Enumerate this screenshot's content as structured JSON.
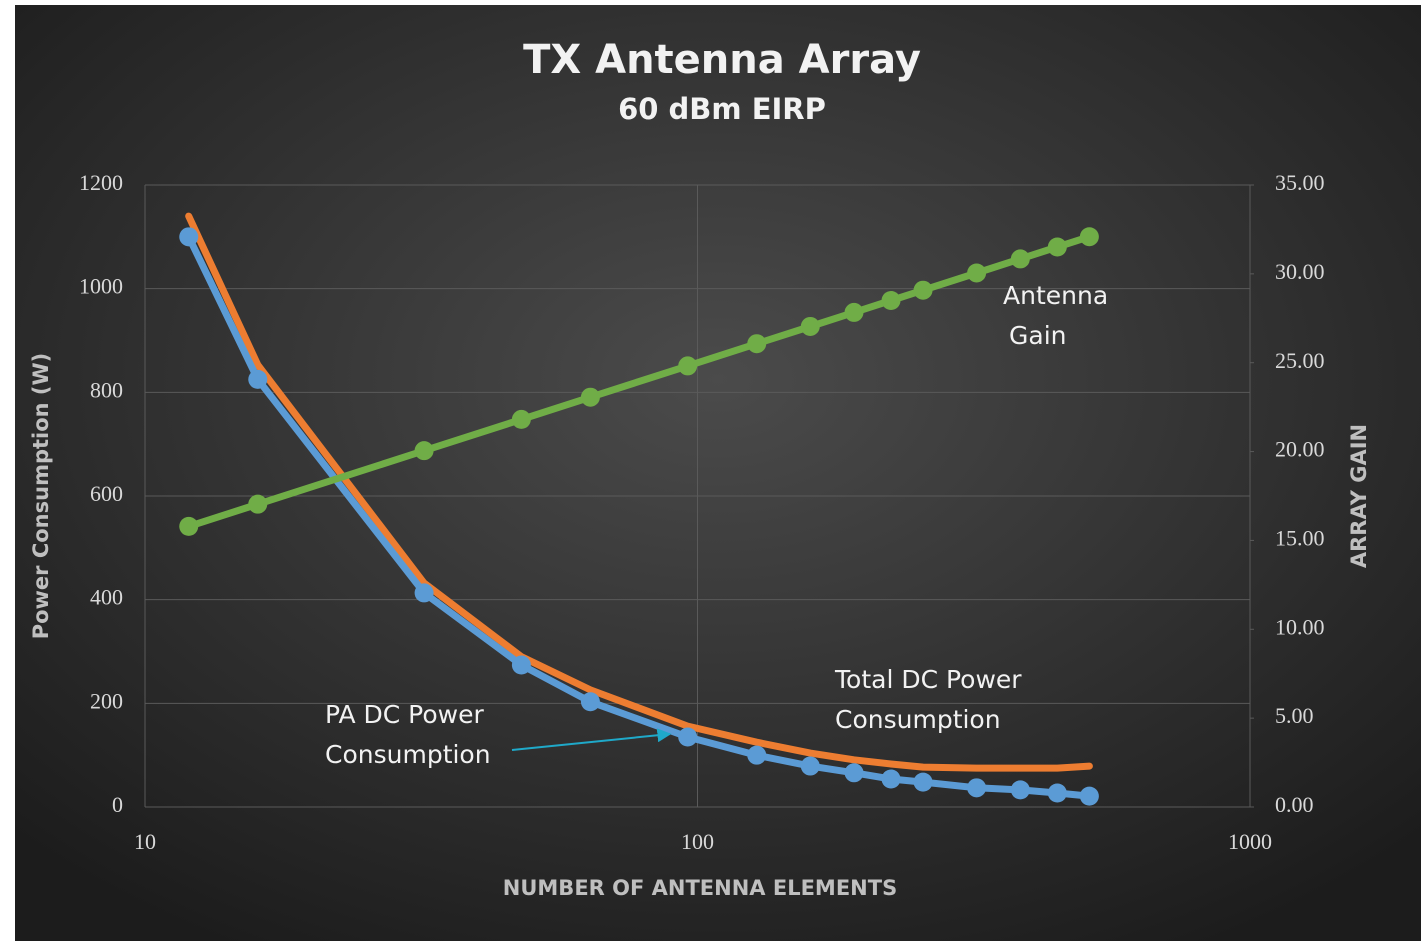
{
  "chart_data": {
    "type": "line",
    "title": "TX Antenna Array",
    "subtitle": "60 dBm EIRP",
    "x_label": "NUMBER OF ANTENNA ELEMENTS",
    "y_label": "Power Consumption (W)",
    "y2_label": "ARRAY GAIN",
    "x": [
      12,
      16,
      32,
      48,
      64,
      96,
      128,
      160,
      192,
      224,
      256,
      320,
      384,
      448,
      512
    ],
    "x_log": true,
    "xlim": [
      10,
      1000
    ],
    "xticks": [
      10,
      100,
      1000
    ],
    "ylim": [
      0,
      1200
    ],
    "yticks": [
      0,
      200,
      400,
      600,
      800,
      1000,
      1200
    ],
    "y2lim": [
      0,
      35
    ],
    "y2ticks": [
      {
        "value": 0,
        "label": "0.00"
      },
      {
        "value": 5,
        "label": "5.00"
      },
      {
        "value": 10,
        "label": "10.00"
      },
      {
        "value": 15,
        "label": "15.00"
      },
      {
        "value": 20,
        "label": "20.00"
      },
      {
        "value": 25,
        "label": "25.00"
      },
      {
        "value": 30,
        "label": "30.00"
      },
      {
        "value": 35,
        "label": "35.00"
      }
    ],
    "grid": true,
    "series": [
      {
        "name": "Total DC Power Consumption",
        "color": "#ed7d31",
        "markers": false,
        "values": [
          1140,
          853,
          432,
          290,
          226,
          156,
          125,
          104,
          91,
          83,
          77,
          75,
          75,
          75,
          79
        ]
      },
      {
        "name": "PA DC Power Consumption",
        "color": "#5b9bd5",
        "markers": true,
        "values": [
          1100,
          825,
          413,
          274,
          203,
          135,
          100,
          79,
          66,
          54,
          48,
          37,
          33,
          27,
          21
        ]
      },
      {
        "name": "Antenna Gain",
        "color": "#70ad47",
        "markers": true,
        "axis": "y2",
        "values": [
          15.79,
          17.04,
          20.05,
          21.81,
          23.06,
          24.82,
          26.07,
          27.04,
          27.83,
          28.5,
          29.08,
          30.05,
          30.84,
          31.51,
          32.09
        ]
      }
    ],
    "annotations": [
      {
        "lines": [
          "Antenna",
          "Gain"
        ]
      },
      {
        "lines": [
          "Total DC Power",
          "Consumption"
        ]
      },
      {
        "lines": [
          "PA  DC Power",
          "Consumption"
        ]
      }
    ]
  }
}
